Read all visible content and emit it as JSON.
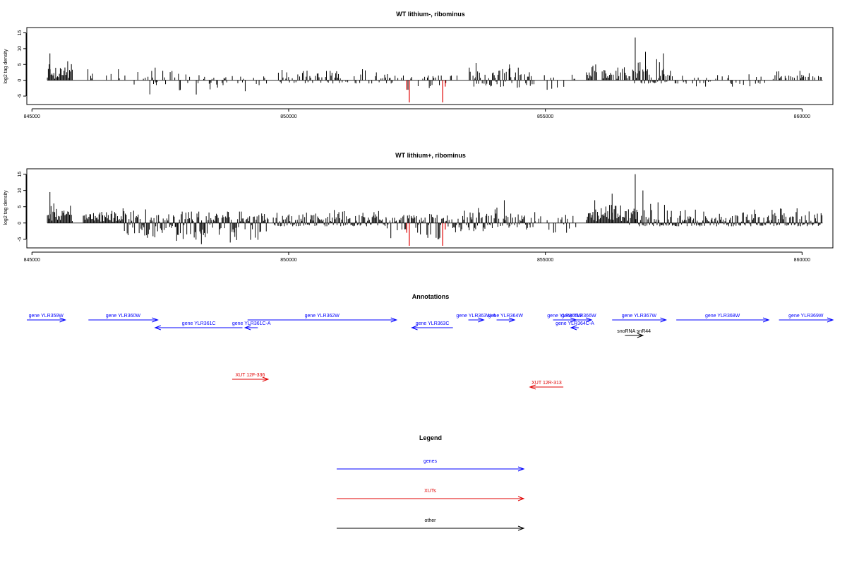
{
  "chart_data": [
    {
      "type": "bar",
      "title": "WT lithium-, ribominus",
      "ylabel": "log2 tag density",
      "ylim": [
        -7,
        16
      ],
      "xlim": [
        844900,
        860600
      ],
      "x_ticks": [
        845000,
        850000,
        855000,
        860000
      ],
      "x_tick_labels": [
        "845000",
        "850000",
        "855000",
        "860000"
      ],
      "y_ticks": [
        -5,
        0,
        5,
        10,
        15
      ],
      "y_tick_labels": [
        "-5",
        "0",
        "5",
        "10",
        "15"
      ],
      "baseline_x_range": [
        845300,
        860400
      ],
      "highlight_color": "#e00000",
      "bar_color": "#000000",
      "bars": [],
      "segments": [
        {
          "x0": 845300,
          "x1": 845800,
          "y_max": 6,
          "y_min": 0,
          "density": 1.0,
          "amp": 6
        },
        {
          "x0": 846000,
          "x1": 846900,
          "y_max": 3.5,
          "y_min": 0,
          "density": 0.35,
          "amp": 3.5
        },
        {
          "x0": 846900,
          "x1": 848200,
          "y_max": 3,
          "y_min": -4.5,
          "density": 0.35,
          "amp": 3
        },
        {
          "x0": 848200,
          "x1": 849600,
          "y_max": 2.5,
          "y_min": -3.5,
          "density": 0.3,
          "amp": 2.5
        },
        {
          "x0": 849800,
          "x1": 852000,
          "y_max": 3.5,
          "y_min": -1,
          "density": 0.55,
          "amp": 3.5
        },
        {
          "x0": 852000,
          "x1": 853300,
          "y_max": 1.5,
          "y_min": -3,
          "density": 0.35,
          "amp": 2
        },
        {
          "x0": 853500,
          "x1": 854800,
          "y_max": 4,
          "y_min": -2.5,
          "density": 0.7,
          "amp": 4
        },
        {
          "x0": 854800,
          "x1": 855600,
          "y_max": 2,
          "y_min": -3,
          "density": 0.25,
          "amp": 2
        },
        {
          "x0": 855800,
          "x1": 856700,
          "y_max": 5,
          "y_min": 0,
          "density": 0.6,
          "amp": 5
        },
        {
          "x0": 856700,
          "x1": 857400,
          "y_max": 7,
          "y_min": -1,
          "density": 1.0,
          "amp": 7
        },
        {
          "x0": 857400,
          "x1": 859300,
          "y_max": 3,
          "y_min": -2,
          "density": 0.35,
          "amp": 2.5
        },
        {
          "x0": 859400,
          "x1": 860400,
          "y_max": 3,
          "y_min": 0,
          "density": 0.35,
          "amp": 2.5
        }
      ],
      "peaks": [
        {
          "x": 845350,
          "y": 8.5
        },
        {
          "x": 856750,
          "y": 13.5
        },
        {
          "x": 856950,
          "y": 9
        },
        {
          "x": 857300,
          "y": 8.5
        },
        {
          "x": 853650,
          "y": 5.5
        },
        {
          "x": 847400,
          "y": 4
        },
        {
          "x": 848200,
          "y": -4.5
        },
        {
          "x": 854300,
          "y": 5
        }
      ],
      "red_bars": [
        {
          "x": 852350,
          "y": -7
        },
        {
          "x": 852300,
          "y": -3
        },
        {
          "x": 853000,
          "y": -7
        },
        {
          "x": 853050,
          "y": -2
        }
      ]
    },
    {
      "type": "bar",
      "title": "WT lithium+, ribominus",
      "ylabel": "log2 tag density",
      "ylim": [
        -7,
        16
      ],
      "xlim": [
        844900,
        860600
      ],
      "x_ticks": [
        845000,
        850000,
        855000,
        860000
      ],
      "x_tick_labels": [
        "845000",
        "850000",
        "855000",
        "860000"
      ],
      "y_ticks": [
        -5,
        0,
        5,
        10,
        15
      ],
      "y_tick_labels": [
        "-5",
        "0",
        "5",
        "10",
        "15"
      ],
      "baseline_x_range": [
        845300,
        860400
      ],
      "highlight_color": "#e00000",
      "bar_color": "#000000",
      "bars": [],
      "segments": [
        {
          "x0": 845300,
          "x1": 845800,
          "y_max": 6,
          "y_min": 0,
          "density": 1.0,
          "amp": 5
        },
        {
          "x0": 846000,
          "x1": 846800,
          "y_max": 4.5,
          "y_min": 0,
          "density": 1.0,
          "amp": 4
        },
        {
          "x0": 846800,
          "x1": 847800,
          "y_max": 4.5,
          "y_min": -5,
          "density": 1.0,
          "amp": 4
        },
        {
          "x0": 847800,
          "x1": 849600,
          "y_max": 3.5,
          "y_min": -6,
          "density": 1.0,
          "amp": 3.5
        },
        {
          "x0": 849700,
          "x1": 851900,
          "y_max": 4,
          "y_min": -1,
          "density": 1.0,
          "amp": 3.5
        },
        {
          "x0": 851900,
          "x1": 853300,
          "y_max": 3,
          "y_min": -5,
          "density": 0.8,
          "amp": 3
        },
        {
          "x0": 853300,
          "x1": 854800,
          "y_max": 5,
          "y_min": -2.5,
          "density": 0.9,
          "amp": 4.5
        },
        {
          "x0": 854800,
          "x1": 855600,
          "y_max": 2.5,
          "y_min": -3,
          "density": 0.4,
          "amp": 2.5
        },
        {
          "x0": 855800,
          "x1": 856600,
          "y_max": 7,
          "y_min": 0,
          "density": 1.0,
          "amp": 6.5
        },
        {
          "x0": 856600,
          "x1": 857400,
          "y_max": 8,
          "y_min": -1,
          "density": 1.0,
          "amp": 7
        },
        {
          "x0": 857400,
          "x1": 860400,
          "y_max": 4.5,
          "y_min": -1,
          "density": 1.0,
          "amp": 4
        }
      ],
      "peaks": [
        {
          "x": 845350,
          "y": 9.5
        },
        {
          "x": 856750,
          "y": 15
        },
        {
          "x": 856900,
          "y": 10
        },
        {
          "x": 856300,
          "y": 9
        },
        {
          "x": 854200,
          "y": 7
        },
        {
          "x": 848300,
          "y": -6.5
        }
      ],
      "red_bars": [
        {
          "x": 852350,
          "y": -7
        },
        {
          "x": 852300,
          "y": -3
        },
        {
          "x": 853000,
          "y": -7
        },
        {
          "x": 853050,
          "y": -2
        }
      ]
    }
  ],
  "annotations": {
    "title": "Annotations",
    "genes": [
      {
        "label": "gene YLR359W",
        "x0": 844900,
        "x1": 845650,
        "row": 0,
        "dir": "right",
        "color": "#0000ff"
      },
      {
        "label": "gene YLR360W",
        "x0": 846100,
        "x1": 847450,
        "row": 0,
        "dir": "right",
        "color": "#0000ff"
      },
      {
        "label": "gene YLR361C",
        "x0": 847400,
        "x1": 849100,
        "row": 1,
        "dir": "left",
        "color": "#0000ff"
      },
      {
        "label": "gene YLR361C-A",
        "x0": 849150,
        "x1": 849400,
        "row": 1,
        "dir": "left",
        "color": "#0000ff"
      },
      {
        "label": "gene YLR362W",
        "x0": 849200,
        "x1": 852100,
        "row": 0,
        "dir": "right",
        "color": "#0000ff"
      },
      {
        "label": "gene YLR363C",
        "x0": 852400,
        "x1": 853200,
        "row": 1,
        "dir": "left",
        "color": "#0000ff"
      },
      {
        "label": "gene YLR363W-A",
        "x0": 853500,
        "x1": 853800,
        "row": 0,
        "dir": "right",
        "color": "#0000ff"
      },
      {
        "label": "gene YLR364W",
        "x0": 854050,
        "x1": 854400,
        "row": 0,
        "dir": "right",
        "color": "#0000ff"
      },
      {
        "label": "gene YLR365W",
        "x0": 855150,
        "x1": 855600,
        "row": 0,
        "dir": "right",
        "color": "#0000ff"
      },
      {
        "label": "gene YLR366W",
        "x0": 855400,
        "x1": 855900,
        "row": 0,
        "dir": "right",
        "color": "#0000ff"
      },
      {
        "label": "gene YLR364C-A",
        "x0": 855500,
        "x1": 855650,
        "row": 1,
        "dir": "left",
        "color": "#0000ff"
      },
      {
        "label": "gene YLR367W",
        "x0": 856300,
        "x1": 857350,
        "row": 0,
        "dir": "right",
        "color": "#0000ff"
      },
      {
        "label": "gene YLR368W",
        "x0": 857550,
        "x1": 859350,
        "row": 0,
        "dir": "right",
        "color": "#0000ff"
      },
      {
        "label": "gene YLR369W",
        "x0": 859550,
        "x1": 860600,
        "row": 0,
        "dir": "right",
        "color": "#0000ff"
      },
      {
        "label": "snoRNA snR44",
        "x0": 856550,
        "x1": 856900,
        "row": 2,
        "dir": "right",
        "color": "#000000"
      }
    ],
    "xuts": [
      {
        "label": "XUT 12F-336",
        "x0": 848900,
        "x1": 849600,
        "row": 0,
        "dir": "right",
        "color": "#e00000"
      },
      {
        "label": "XUT 12R-313",
        "x0": 854700,
        "x1": 855350,
        "row": 1,
        "dir": "left",
        "color": "#e00000"
      }
    ]
  },
  "legend": {
    "title": "Legend",
    "items": [
      {
        "label": "genes",
        "color": "#0000ff"
      },
      {
        "label": "XUTs",
        "color": "#e00000"
      },
      {
        "label": "other",
        "color": "#000000"
      }
    ]
  }
}
